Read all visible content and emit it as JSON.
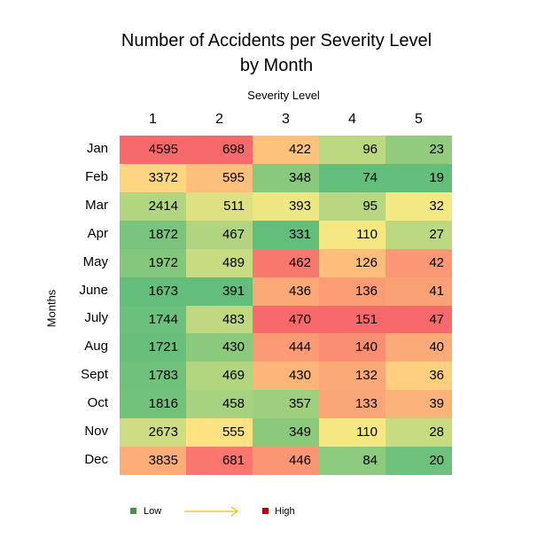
{
  "chart_data": {
    "type": "heatmap",
    "title_lines": [
      "Number of Accidents per Severity Level",
      "by Month"
    ],
    "xlabel": "Severity Level",
    "ylabel": "Months",
    "columns": [
      "1",
      "2",
      "3",
      "4",
      "5"
    ],
    "rows": [
      "Jan",
      "Feb",
      "Mar",
      "Apr",
      "May",
      "June",
      "July",
      "Aug",
      "Sept",
      "Oct",
      "Nov",
      "Dec"
    ],
    "values": [
      [
        4595,
        698,
        422,
        96,
        23
      ],
      [
        3372,
        595,
        348,
        74,
        19
      ],
      [
        2414,
        511,
        393,
        95,
        32
      ],
      [
        1872,
        467,
        331,
        110,
        27
      ],
      [
        1972,
        489,
        462,
        126,
        42
      ],
      [
        1673,
        391,
        436,
        136,
        41
      ],
      [
        1744,
        483,
        470,
        151,
        47
      ],
      [
        1721,
        430,
        444,
        140,
        40
      ],
      [
        1783,
        469,
        430,
        132,
        36
      ],
      [
        1816,
        458,
        357,
        133,
        39
      ],
      [
        2673,
        555,
        349,
        110,
        28
      ],
      [
        3835,
        681,
        446,
        84,
        20
      ]
    ],
    "color_scale": "per-column green (low) - yellow - red (high)",
    "colors": {
      "low": "#63be7b",
      "mid": "#ffeb84",
      "high": "#f8696b"
    },
    "legend": {
      "low_label": "Low",
      "high_label": "High",
      "low_color": "#3c9b3c",
      "high_color": "#c00000",
      "arrow_color": "#f5c000"
    }
  }
}
